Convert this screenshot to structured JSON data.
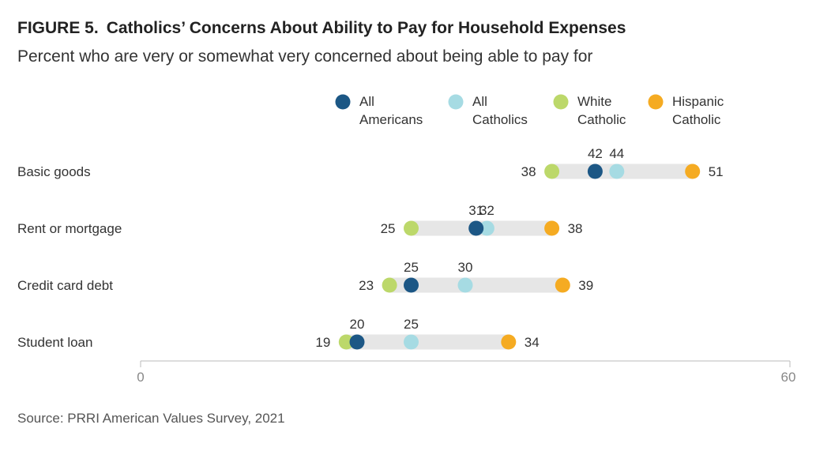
{
  "figure_label": "FIGURE 5.",
  "title": "Catholics’ Concerns About Ability to Pay for Household Expenses",
  "subtitle": "Percent who are very or somewhat very concerned about being able to pay for",
  "source": "Source: PRRI American Values Survey, 2021",
  "chart_data": {
    "type": "scatter",
    "title": "Catholics’ Concerns About Ability to Pay for Household Expenses",
    "categories": [
      "Basic goods",
      "Rent or mortgage",
      "Credit card debt",
      "Student loan"
    ],
    "series": [
      {
        "name": "All Americans",
        "name_lines": [
          "All",
          "Americans"
        ],
        "color": "#1c5785",
        "values": [
          42,
          31,
          25,
          20
        ]
      },
      {
        "name": "All Catholics",
        "name_lines": [
          "All",
          "Catholics"
        ],
        "color": "#a6dbe3",
        "values": [
          44,
          32,
          30,
          25
        ]
      },
      {
        "name": "White Catholic",
        "name_lines": [
          "White",
          "Catholic"
        ],
        "color": "#bcd86a",
        "values": [
          38,
          25,
          23,
          19
        ]
      },
      {
        "name": "Hispanic Catholic",
        "name_lines": [
          "Hispanic",
          "Catholic"
        ],
        "color": "#f5ab22",
        "values": [
          51,
          38,
          39,
          34
        ]
      }
    ],
    "xlim": [
      0,
      60
    ],
    "xticks": [
      "0",
      "60"
    ],
    "legend": "top",
    "grid": false
  }
}
